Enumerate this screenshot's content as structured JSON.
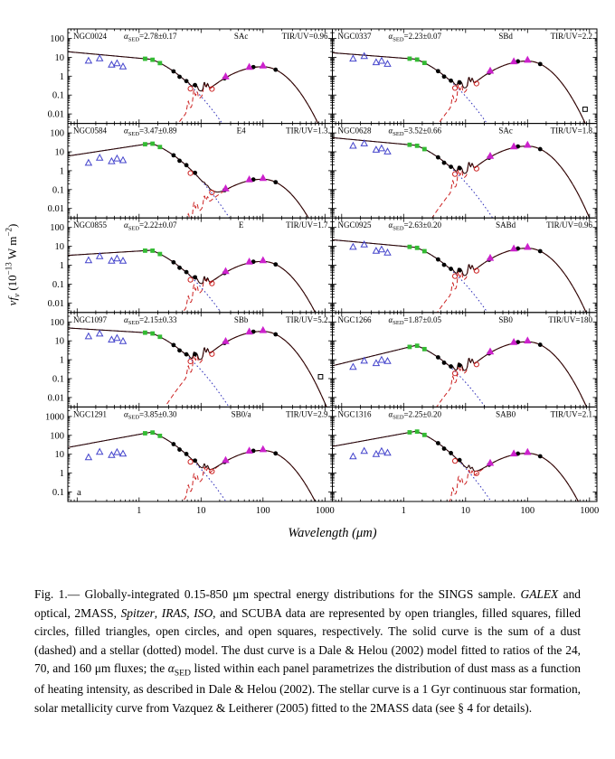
{
  "figure": {
    "xlabel": "Wavelength (μm)",
    "ylabel": {
      "p1": "νf",
      "sub": "ν",
      "p2": " (10",
      "sup1": "−13",
      "p3": " W m",
      "sup2": "−2",
      "p4": ")"
    },
    "alpha_label": {
      "sym": "α",
      "sub": "SED",
      "eq": "="
    },
    "tir_prefix": "TIR/UV=",
    "x_ticks": {
      "labels": [
        "1",
        "10",
        "100",
        "1000"
      ],
      "exponents": [
        0,
        1,
        2,
        3
      ]
    },
    "y_ticks_standard": {
      "labels": [
        "100",
        "10",
        "1",
        "0.1",
        "0.01"
      ],
      "exponents": [
        2,
        1,
        0,
        -1,
        -2
      ]
    },
    "y_ticks_bright": {
      "labels": [
        "1000",
        "100",
        "10",
        "1",
        "0.1"
      ],
      "exponents": [
        3,
        2,
        1,
        0,
        -1
      ]
    },
    "colors": {
      "stellar": "#3333bb",
      "dust": "#cc2222",
      "total": "#2a0505",
      "squares": "#33bb33",
      "uv": "#4444cc",
      "iras": "#cc22cc",
      "iso": "#cc2222",
      "black": "#000000"
    }
  },
  "chart_data": {
    "type": "line",
    "description": "Ten-panel grid (5 rows x 2 columns) of globally integrated log-log spectral energy distributions for the SINGS sample",
    "x_axis": {
      "label": "Wavelength (μm)",
      "scale": "log",
      "range_um": [
        0.07,
        1300
      ],
      "major_ticks": [
        1,
        10,
        100,
        1000
      ]
    },
    "y_axis": {
      "label": "νfν (10−13 W m−2)",
      "scale": "log",
      "ticks_rows_1_to_4": [
        0.01,
        0.1,
        1,
        10,
        100
      ],
      "ticks_row_5": [
        0.1,
        1,
        10,
        100,
        1000
      ]
    },
    "legend": {
      "open_triangles": "GALEX and optical",
      "filled_squares": "2MASS",
      "filled_circles": "Spitzer",
      "filled_triangles": "IRAS",
      "open_circles": "ISO",
      "open_squares": "SCUBA",
      "solid_curve": "dust + stellar model sum",
      "dashed_curve": "Dale & Helou (2002) dust model",
      "dotted_curve": "1 Gyr continuous star formation stellar model"
    },
    "marker_wavelengths_um": {
      "galex_optical": [
        0.153,
        0.231,
        0.36,
        0.44,
        0.55
      ],
      "twomass": [
        1.25,
        1.65,
        2.17
      ],
      "spitzer": [
        3.6,
        4.5,
        5.8,
        8.0,
        24,
        70,
        160
      ],
      "iso": [
        6.75,
        15
      ],
      "iras": [
        25,
        60,
        100
      ],
      "scuba": [
        850
      ]
    },
    "panels": [
      {
        "name": "NGC0024",
        "alpha_sed": "2.78±0.17",
        "morphology": "SAc",
        "tir_uv": "0.96",
        "y_scale": "standard",
        "model": {
          "stellar_level": 0.95,
          "uv_slope": -0.3,
          "uv_offset": 0.5,
          "dust_peak": 0.5
        }
      },
      {
        "name": "NGC0337",
        "alpha_sed": "2.23±0.07",
        "morphology": "SBd",
        "tir_uv": "2.2",
        "y_scale": "standard",
        "scuba_y": -1.75,
        "model": {
          "stellar_level": 0.95,
          "uv_slope": -0.25,
          "uv_offset": 0.35,
          "dust_peak": 0.8
        }
      },
      {
        "name": "NGC0584",
        "alpha_sed": "3.47±0.89",
        "morphology": "E4",
        "tir_uv": "1.3",
        "y_scale": "standard",
        "model": {
          "stellar_level": 1.35,
          "uv_slope": 0.5,
          "uv_offset": 0.65,
          "dust_peak": -0.45
        }
      },
      {
        "name": "NGC0628",
        "alpha_sed": "3.52±0.66",
        "morphology": "SAc",
        "tir_uv": "1.8",
        "y_scale": "standard",
        "model": {
          "stellar_level": 1.4,
          "uv_slope": -0.3,
          "uv_offset": 0.45,
          "dust_peak": 1.3
        }
      },
      {
        "name": "NGC0855",
        "alpha_sed": "2.22±0.07",
        "morphology": "E",
        "tir_uv": "1.7",
        "y_scale": "standard",
        "model": {
          "stellar_level": 0.75,
          "uv_slope": 0.2,
          "uv_offset": 0.45,
          "dust_peak": 0.2
        }
      },
      {
        "name": "NGC0925",
        "alpha_sed": "2.63±0.20",
        "morphology": "SABd",
        "tir_uv": "0.96",
        "y_scale": "standard",
        "model": {
          "stellar_level": 1.0,
          "uv_slope": -0.3,
          "uv_offset": 0.4,
          "dust_peak": 0.9
        }
      },
      {
        "name": "NGC1097",
        "alpha_sed": "2.15±0.33",
        "morphology": "SBb",
        "tir_uv": "5.2",
        "y_scale": "standard",
        "scuba_y": -0.9,
        "model": {
          "stellar_level": 1.45,
          "uv_slope": -0.2,
          "uv_offset": 0.5,
          "dust_peak": 1.5
        }
      },
      {
        "name": "NGC1266",
        "alpha_sed": "1.87±0.05",
        "morphology": "SB0",
        "tir_uv": "180",
        "y_scale": "standard",
        "model": {
          "stellar_level": 0.6,
          "uv_slope": 0.8,
          "uv_offset": 0.45,
          "dust_peak": 0.95
        }
      },
      {
        "name": "NGC1291",
        "alpha_sed": "3.85±0.30",
        "morphology": "SB0/a",
        "tir_uv": "2.9",
        "y_scale": "bright",
        "corner": "a",
        "model": {
          "stellar_level": 2.05,
          "uv_slope": 0.6,
          "uv_offset": 0.85,
          "dust_peak": 1.2
        }
      },
      {
        "name": "NGC1316",
        "alpha_sed": "2.25±0.20",
        "morphology": "SAB0",
        "tir_uv": "2.1",
        "y_scale": "bright",
        "model": {
          "stellar_level": 2.1,
          "uv_slope": 0.6,
          "uv_offset": 0.85,
          "dust_peak": 1.05
        }
      }
    ]
  },
  "caption": {
    "segments": [
      {
        "t": "Fig. 1.— Globally-integrated 0.15-850 μm spectral energy distributions for the SINGS sample. "
      },
      {
        "t": "GALEX",
        "i": true
      },
      {
        "t": " and optical, 2MASS, "
      },
      {
        "t": "Spitzer",
        "i": true
      },
      {
        "t": ", "
      },
      {
        "t": "IRAS",
        "i": true
      },
      {
        "t": ", "
      },
      {
        "t": "ISO",
        "i": true
      },
      {
        "t": ", and SCUBA data are represented by open triangles, filled squares, filled circles, filled triangles, open circles, and open squares, respectively.  The solid curve is the sum of a dust (dashed) and a stellar (dotted) model. The dust curve is a Dale & Helou (2002) model fitted to ratios of the 24, 70, and 160 μm fluxes; the "
      },
      {
        "t": "α",
        "i": true
      },
      {
        "t": "SED",
        "sub": true
      },
      {
        "t": " listed within each panel parametrizes the distribution of dust mass as a function of heating intensity, as described in Dale & Helou (2002).  The stellar curve is a 1 Gyr continuous star formation, solar metallicity curve from Vazquez & Leitherer (2005) fitted to the 2MASS data (see § 4 for details)."
      }
    ]
  }
}
